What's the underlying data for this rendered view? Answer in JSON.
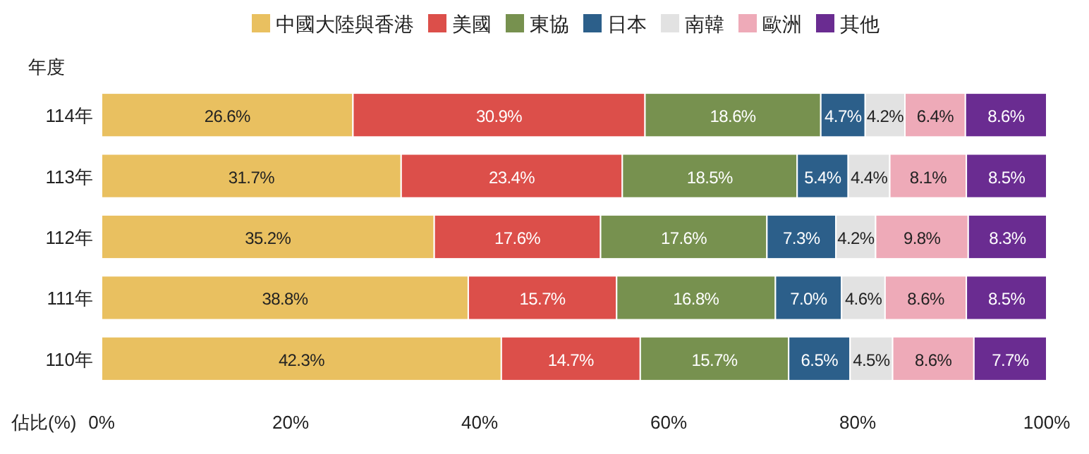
{
  "chart_data": {
    "type": "bar",
    "orientation": "horizontal",
    "stacked": true,
    "legend": "top",
    "grid": false,
    "ylabel": "年度",
    "xlabel": "佔比(%)",
    "categories": [
      "114年",
      "113年",
      "112年",
      "111年",
      "110年"
    ],
    "xlim": [
      0,
      100
    ],
    "xticks": [
      {
        "value": 0,
        "label": "0%"
      },
      {
        "value": 20,
        "label": "20%"
      },
      {
        "value": 40,
        "label": "40%"
      },
      {
        "value": 60,
        "label": "60%"
      },
      {
        "value": 80,
        "label": "80%"
      },
      {
        "value": 100,
        "label": "100%"
      }
    ],
    "series": [
      {
        "name": "中國大陸與香港",
        "color": "#e9c060",
        "values": [
          26.6,
          31.7,
          35.2,
          38.8,
          42.3
        ],
        "value_labels": [
          "26.6%",
          "31.7%",
          "35.2%",
          "38.8%",
          "42.3%"
        ]
      },
      {
        "name": "美國",
        "color": "#dc4f4a",
        "values": [
          30.9,
          23.4,
          17.6,
          15.7,
          14.7
        ],
        "value_labels": [
          "30.9%",
          "23.4%",
          "17.6%",
          "15.7%",
          "14.7%"
        ]
      },
      {
        "name": "東協",
        "color": "#77914f",
        "values": [
          18.6,
          18.5,
          17.6,
          16.8,
          15.7
        ],
        "value_labels": [
          "18.6%",
          "18.5%",
          "17.6%",
          "16.8%",
          "15.7%"
        ]
      },
      {
        "name": "日本",
        "color": "#2c5f8a",
        "values": [
          4.7,
          5.4,
          7.3,
          7.0,
          6.5
        ],
        "value_labels": [
          "4.7%",
          "5.4%",
          "7.3%",
          "7.0%",
          "6.5%"
        ]
      },
      {
        "name": "南韓",
        "color": "#e2e2e2",
        "values": [
          4.2,
          4.4,
          4.2,
          4.6,
          4.5
        ],
        "value_labels": [
          "4.2%",
          "4.4%",
          "4.2%",
          "4.6%",
          "4.5%"
        ]
      },
      {
        "name": "歐洲",
        "color": "#eeaab8",
        "values": [
          6.4,
          8.1,
          9.8,
          8.6,
          8.6
        ],
        "value_labels": [
          "6.4%",
          "8.1%",
          "9.8%",
          "8.6%",
          "8.6%"
        ]
      },
      {
        "name": "其他",
        "color": "#6a2c91",
        "values": [
          8.6,
          8.5,
          8.3,
          8.5,
          7.7
        ],
        "value_labels": [
          "8.6%",
          "8.5%",
          "8.3%",
          "8.5%",
          "7.7%"
        ]
      }
    ]
  }
}
